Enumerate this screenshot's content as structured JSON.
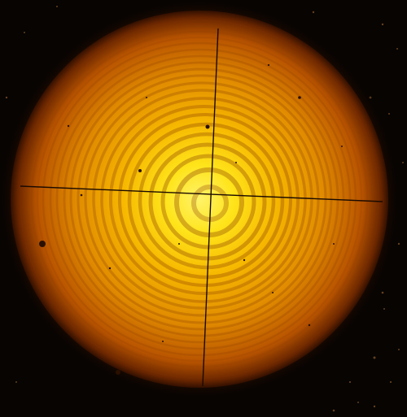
{
  "image": {
    "subject": "newton-rings-interference-pattern",
    "colors": {
      "background": "#070402",
      "disc_edge": "#3a1500",
      "disc_outer": "#c85a00",
      "disc_mid": "#f0a000",
      "disc_center": "#fff04a",
      "ring_dark": "#8a3c00",
      "crosshair": "#1a0a00",
      "speckle": "#8a5a2a"
    }
  }
}
